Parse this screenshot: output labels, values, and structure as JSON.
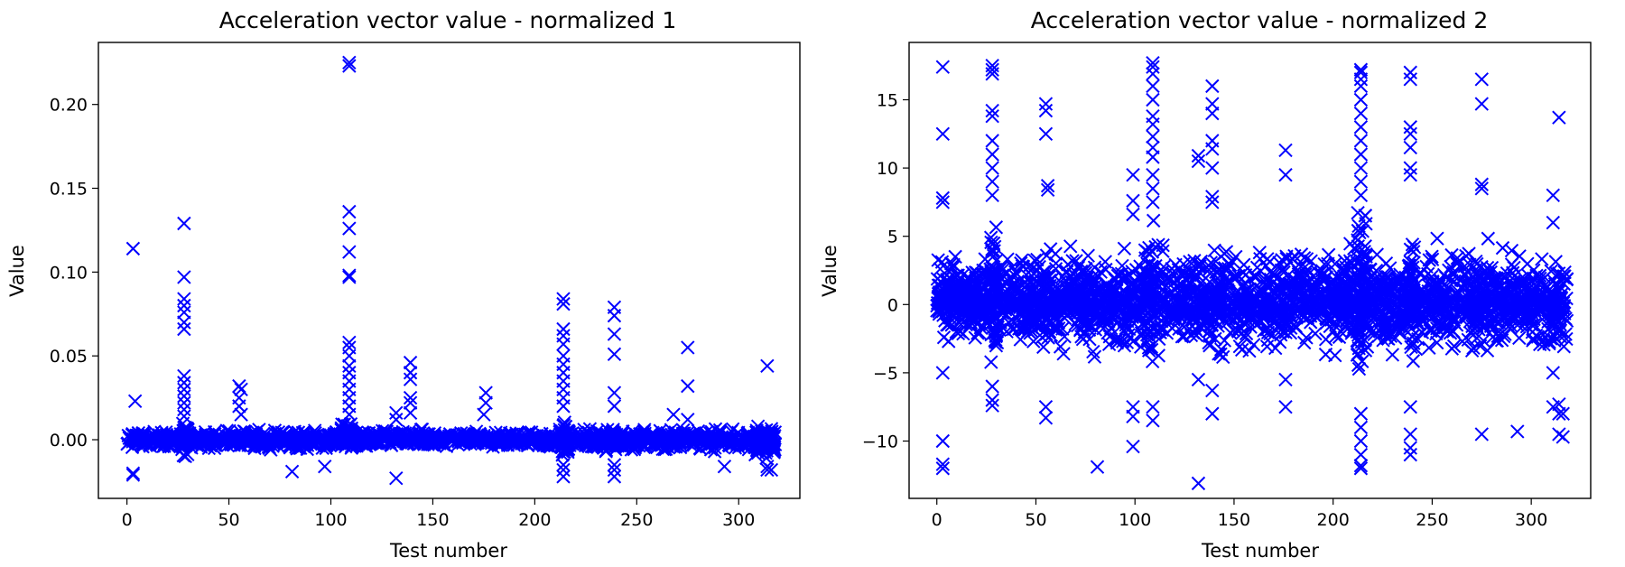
{
  "chart_data": [
    {
      "type": "scatter",
      "title": "Acceleration vector value - normalized 1",
      "xlabel": "Test number",
      "ylabel": "Value",
      "xlim": [
        -14,
        330
      ],
      "ylim": [
        -0.035,
        0.237
      ],
      "xticks": [
        "0",
        "50",
        "100",
        "150",
        "200",
        "250",
        "300"
      ],
      "yticks": [
        "0.00",
        "0.05",
        "0.10",
        "0.15",
        "0.20"
      ],
      "ytick_values": [
        0,
        0.05,
        0.1,
        0.15,
        0.2
      ],
      "xtick_values": [
        0,
        50,
        100,
        150,
        200,
        250,
        300
      ],
      "marker": "x",
      "color": "#0000ff",
      "grid": false,
      "series": [
        {
          "points": [
            [
              3,
              -0.02
            ],
            [
              3,
              -0.021
            ],
            [
              4,
              0.023
            ],
            [
              3,
              0.114
            ],
            [
              28,
              0.129
            ],
            [
              28,
              0.097
            ],
            [
              28,
              0.084
            ],
            [
              28,
              0.08
            ],
            [
              28,
              0.076
            ],
            [
              28,
              0.07
            ],
            [
              28,
              0.066
            ],
            [
              28,
              0.038
            ],
            [
              28,
              0.034
            ],
            [
              28,
              0.03
            ],
            [
              28,
              0.026
            ],
            [
              28,
              0.022
            ],
            [
              28,
              0.018
            ],
            [
              28,
              0.014
            ],
            [
              55,
              0.032
            ],
            [
              56,
              0.03
            ],
            [
              55,
              0.025
            ],
            [
              55,
              0.02
            ],
            [
              56,
              0.015
            ],
            [
              81,
              -0.019
            ],
            [
              97,
              -0.016
            ],
            [
              109,
              0.225
            ],
            [
              109,
              0.223
            ],
            [
              109,
              0.136
            ],
            [
              109,
              0.126
            ],
            [
              109,
              0.112
            ],
            [
              109,
              0.098
            ],
            [
              109,
              0.097
            ],
            [
              109,
              0.058
            ],
            [
              109,
              0.055
            ],
            [
              109,
              0.05
            ],
            [
              109,
              0.044
            ],
            [
              109,
              0.04
            ],
            [
              109,
              0.035
            ],
            [
              109,
              0.03
            ],
            [
              109,
              0.025
            ],
            [
              109,
              0.02
            ],
            [
              109,
              0.015
            ],
            [
              132,
              -0.023
            ],
            [
              132,
              0.016
            ],
            [
              132,
              0.012
            ],
            [
              139,
              0.046
            ],
            [
              139,
              0.04
            ],
            [
              139,
              0.036
            ],
            [
              139,
              0.025
            ],
            [
              139,
              0.022
            ],
            [
              139,
              0.016
            ],
            [
              176,
              0.028
            ],
            [
              176,
              0.022
            ],
            [
              175,
              0.015
            ],
            [
              214,
              0.084
            ],
            [
              214,
              0.081
            ],
            [
              214,
              0.066
            ],
            [
              214,
              0.062
            ],
            [
              214,
              0.057
            ],
            [
              214,
              0.05
            ],
            [
              214,
              0.045
            ],
            [
              214,
              0.04
            ],
            [
              214,
              0.035
            ],
            [
              214,
              0.03
            ],
            [
              214,
              0.025
            ],
            [
              214,
              0.02
            ],
            [
              214,
              -0.015
            ],
            [
              214,
              -0.018
            ],
            [
              214,
              -0.022
            ],
            [
              239,
              0.079
            ],
            [
              239,
              0.074
            ],
            [
              239,
              0.063
            ],
            [
              239,
              0.051
            ],
            [
              239,
              0.028
            ],
            [
              239,
              0.02
            ],
            [
              239,
              -0.015
            ],
            [
              239,
              -0.018
            ],
            [
              239,
              -0.022
            ],
            [
              275,
              0.055
            ],
            [
              275,
              0.032
            ],
            [
              275,
              0.012
            ],
            [
              268,
              0.015
            ],
            [
              293,
              -0.016
            ],
            [
              314,
              0.044
            ],
            [
              314,
              -0.016
            ],
            [
              314,
              -0.018
            ],
            [
              316,
              -0.018
            ]
          ],
          "bands": [
            {
              "x": [
                0,
                27
              ],
              "y": [
                -0.006,
                0.006
              ],
              "n": 150
            },
            {
              "x": [
                27,
                30
              ],
              "y": [
                -0.012,
                0.014
              ],
              "n": 60
            },
            {
              "x": [
                30,
                105
              ],
              "y": [
                -0.007,
                0.007
              ],
              "n": 380
            },
            {
              "x": [
                105,
                111
              ],
              "y": [
                -0.01,
                0.012
              ],
              "n": 70
            },
            {
              "x": [
                111,
                175
              ],
              "y": [
                -0.006,
                0.007
              ],
              "n": 320
            },
            {
              "x": [
                175,
                212
              ],
              "y": [
                -0.006,
                0.006
              ],
              "n": 180
            },
            {
              "x": [
                212,
                217
              ],
              "y": [
                -0.014,
                0.014
              ],
              "n": 70
            },
            {
              "x": [
                217,
                238
              ],
              "y": [
                -0.008,
                0.008
              ],
              "n": 110
            },
            {
              "x": [
                238,
                241
              ],
              "y": [
                -0.012,
                0.012
              ],
              "n": 40
            },
            {
              "x": [
                241,
                318
              ],
              "y": [
                -0.008,
                0.008
              ],
              "n": 360
            },
            {
              "x": [
                308,
                318
              ],
              "y": [
                -0.014,
                0.012
              ],
              "n": 60
            }
          ]
        }
      ]
    },
    {
      "type": "scatter",
      "title": "Acceleration vector value - normalized 2",
      "xlabel": "Test number",
      "ylabel": "Value",
      "xlim": [
        -14,
        330
      ],
      "ylim": [
        -14.2,
        19.2
      ],
      "xticks": [
        "0",
        "50",
        "100",
        "150",
        "200",
        "250",
        "300"
      ],
      "yticks": [
        "−10",
        "−5",
        "0",
        "5",
        "10",
        "15"
      ],
      "ytick_values": [
        -10,
        -5,
        0,
        5,
        10,
        15
      ],
      "xtick_values": [
        0,
        50,
        100,
        150,
        200,
        250,
        300
      ],
      "marker": "x",
      "color": "#0000ff",
      "grid": false,
      "series": [
        {
          "points": [
            [
              3,
              17.4
            ],
            [
              3,
              12.5
            ],
            [
              3,
              7.8
            ],
            [
              3,
              7.5
            ],
            [
              3,
              -5.0
            ],
            [
              3,
              -10.0
            ],
            [
              3,
              -11.7
            ],
            [
              3,
              -12.0
            ],
            [
              28,
              17.5
            ],
            [
              28,
              17.2
            ],
            [
              28,
              16.9
            ],
            [
              28,
              14.2
            ],
            [
              28,
              13.8
            ],
            [
              28,
              12.0
            ],
            [
              28,
              11.0
            ],
            [
              28,
              10.0
            ],
            [
              28,
              9.0
            ],
            [
              28,
              8.0
            ],
            [
              28,
              -6.0
            ],
            [
              28,
              -7.0
            ],
            [
              28,
              -7.4
            ],
            [
              55,
              14.7
            ],
            [
              55,
              14.2
            ],
            [
              55,
              12.5
            ],
            [
              56,
              8.7
            ],
            [
              56,
              8.4
            ],
            [
              55,
              -7.5
            ],
            [
              55,
              -8.3
            ],
            [
              81,
              -11.9
            ],
            [
              99,
              9.5
            ],
            [
              99,
              7.6
            ],
            [
              99,
              6.6
            ],
            [
              99,
              -7.5
            ],
            [
              99,
              -8.2
            ],
            [
              99,
              -10.4
            ],
            [
              109,
              17.7
            ],
            [
              109,
              17.4
            ],
            [
              109,
              16.9
            ],
            [
              109,
              16.0
            ],
            [
              109,
              15.0
            ],
            [
              109,
              13.8
            ],
            [
              109,
              13.2
            ],
            [
              109,
              12.3
            ],
            [
              109,
              11.5
            ],
            [
              109,
              10.8
            ],
            [
              109,
              9.5
            ],
            [
              109,
              8.5
            ],
            [
              109,
              7.5
            ],
            [
              109,
              -7.5
            ],
            [
              109,
              -8.5
            ],
            [
              132,
              10.9
            ],
            [
              132,
              10.5
            ],
            [
              132,
              -5.5
            ],
            [
              132,
              -13.1
            ],
            [
              139,
              16.0
            ],
            [
              139,
              14.7
            ],
            [
              139,
              14.0
            ],
            [
              139,
              12.0
            ],
            [
              139,
              11.4
            ],
            [
              139,
              10.0
            ],
            [
              139,
              7.9
            ],
            [
              139,
              7.5
            ],
            [
              139,
              -6.3
            ],
            [
              139,
              -8.0
            ],
            [
              176,
              11.3
            ],
            [
              176,
              9.5
            ],
            [
              176,
              -5.5
            ],
            [
              176,
              -7.5
            ],
            [
              214,
              17.2
            ],
            [
              214,
              17.0
            ],
            [
              214,
              16.5
            ],
            [
              214,
              16.0
            ],
            [
              214,
              15.0
            ],
            [
              214,
              14.0
            ],
            [
              214,
              13.0
            ],
            [
              214,
              12.0
            ],
            [
              214,
              11.0
            ],
            [
              214,
              10.0
            ],
            [
              214,
              9.0
            ],
            [
              214,
              8.0
            ],
            [
              214,
              -8.0
            ],
            [
              214,
              -9.0
            ],
            [
              214,
              -10.0
            ],
            [
              214,
              -11.0
            ],
            [
              214,
              -11.8
            ],
            [
              214,
              -12.0
            ],
            [
              239,
              17.0
            ],
            [
              239,
              16.5
            ],
            [
              239,
              13.0
            ],
            [
              239,
              12.5
            ],
            [
              239,
              11.5
            ],
            [
              239,
              10.0
            ],
            [
              239,
              9.5
            ],
            [
              239,
              -7.5
            ],
            [
              239,
              -9.5
            ],
            [
              239,
              -10.5
            ],
            [
              239,
              -11.0
            ],
            [
              275,
              16.5
            ],
            [
              275,
              14.7
            ],
            [
              275,
              8.8
            ],
            [
              275,
              8.5
            ],
            [
              275,
              -9.5
            ],
            [
              293,
              -9.3
            ],
            [
              314,
              13.7
            ],
            [
              311,
              8.0
            ],
            [
              311,
              6.0
            ],
            [
              311,
              -5.0
            ],
            [
              311,
              -7.5
            ],
            [
              314,
              -7.3
            ],
            [
              314,
              -8.0
            ],
            [
              314,
              -9.5
            ],
            [
              316,
              -9.7
            ],
            [
              316,
              -8.0
            ]
          ],
          "bands": [
            {
              "x": [
                0,
                27
              ],
              "y": [
                -3.5,
                4.0
              ],
              "n": 220
            },
            {
              "x": [
                27,
                30
              ],
              "y": [
                -5.5,
                7.0
              ],
              "n": 80
            },
            {
              "x": [
                30,
                105
              ],
              "y": [
                -4.5,
                5.0
              ],
              "n": 520
            },
            {
              "x": [
                105,
                111
              ],
              "y": [
                -6.0,
                7.0
              ],
              "n": 90
            },
            {
              "x": [
                111,
                175
              ],
              "y": [
                -4.5,
                5.0
              ],
              "n": 440
            },
            {
              "x": [
                175,
                212
              ],
              "y": [
                -4.0,
                5.0
              ],
              "n": 260
            },
            {
              "x": [
                212,
                217
              ],
              "y": [
                -7.0,
                8.0
              ],
              "n": 100
            },
            {
              "x": [
                217,
                238
              ],
              "y": [
                -4.5,
                5.0
              ],
              "n": 160
            },
            {
              "x": [
                238,
                241
              ],
              "y": [
                -6.0,
                7.0
              ],
              "n": 60
            },
            {
              "x": [
                241,
                318
              ],
              "y": [
                -4.5,
                5.0
              ],
              "n": 520
            },
            {
              "x": [
                0,
                318
              ],
              "y": [
                -1.5,
                1.5
              ],
              "n": 500
            }
          ]
        }
      ]
    }
  ]
}
